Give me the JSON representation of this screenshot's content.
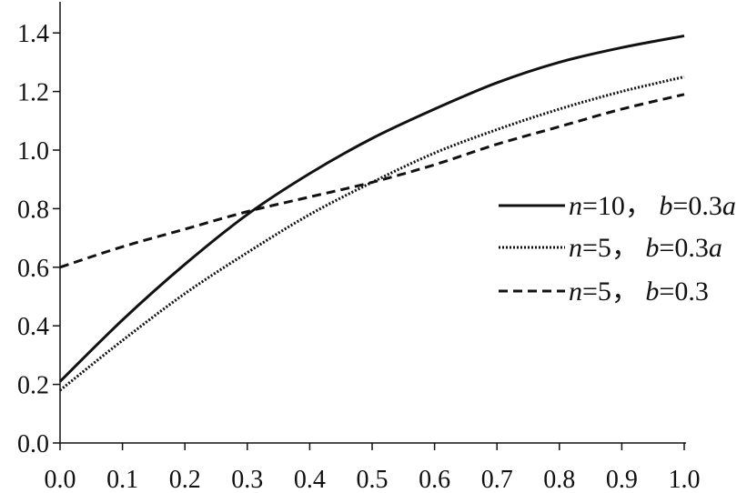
{
  "chart_data": {
    "type": "line",
    "title": "",
    "xlabel": "",
    "ylabel": "",
    "xlim": [
      0.0,
      1.0
    ],
    "ylim": [
      0.0,
      1.5
    ],
    "xticks": [
      0.0,
      0.1,
      0.2,
      0.3,
      0.4,
      0.5,
      0.6,
      0.7,
      0.8,
      0.9,
      1.0
    ],
    "xtick_labels": [
      "0.0",
      "0.1",
      "0.2",
      "0.3",
      "0.4",
      "0.5",
      "0.6",
      "0.7",
      "0.8",
      "0.9",
      "1.0"
    ],
    "yticks": [
      0.0,
      0.2,
      0.4,
      0.6,
      0.8,
      1.0,
      1.2,
      1.4
    ],
    "ytick_labels": [
      "0.0",
      "0.2",
      "0.4",
      "0.6",
      "0.8",
      "1.0",
      "1.2",
      "1.4"
    ],
    "grid": false,
    "legend_position": "right",
    "x": [
      0.0,
      0.1,
      0.2,
      0.3,
      0.4,
      0.5,
      0.6,
      0.7,
      0.8,
      0.9,
      1.0
    ],
    "series": [
      {
        "name": "n=10，b=0.3a",
        "name_parts": [
          "n",
          "=10， ",
          "b",
          "=0.3",
          "a"
        ],
        "style": "solid",
        "color": "#111111",
        "values": [
          0.21,
          0.42,
          0.61,
          0.78,
          0.92,
          1.04,
          1.14,
          1.23,
          1.3,
          1.35,
          1.39
        ]
      },
      {
        "name": "n=5，b=0.3a",
        "name_parts": [
          "n",
          "=5， ",
          "b",
          "=0.3",
          "a"
        ],
        "style": "dotted",
        "color": "#111111",
        "values": [
          0.18,
          0.35,
          0.51,
          0.65,
          0.78,
          0.89,
          0.99,
          1.07,
          1.14,
          1.2,
          1.25
        ]
      },
      {
        "name": "n=5，b=0.3",
        "name_parts": [
          "n",
          "=5， ",
          "b",
          "=0.3",
          ""
        ],
        "style": "dashed",
        "color": "#111111",
        "values": [
          0.6,
          0.67,
          0.73,
          0.79,
          0.84,
          0.89,
          0.95,
          1.02,
          1.08,
          1.14,
          1.19
        ]
      }
    ]
  }
}
